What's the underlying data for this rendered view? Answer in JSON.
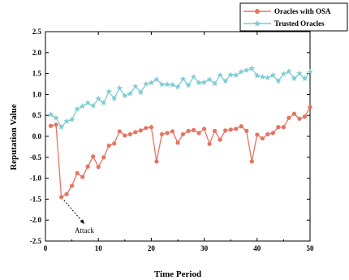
{
  "chart_data": {
    "type": "line",
    "xlabel": "Time Period",
    "ylabel": "Reputation Value",
    "xlim": [
      0,
      50
    ],
    "ylim": [
      -2.5,
      2.5
    ],
    "xticks": [
      0,
      10,
      20,
      30,
      40,
      50
    ],
    "yticks": [
      "-2.5",
      "-2.0",
      "-1.5",
      "-1.0",
      "-0.5",
      "0.0",
      "0.5",
      "1.0",
      "1.5",
      "2.0",
      "2.5"
    ],
    "ytick_values": [
      -2.5,
      -2.0,
      -1.5,
      -1.0,
      -0.5,
      0.0,
      0.5,
      1.0,
      1.5,
      2.0,
      2.5
    ],
    "highlight_ytick": "-1.5",
    "highlight_color": "#6b6bd6",
    "grid": false,
    "legend_position": "top-right",
    "annotation": {
      "text": "Attack",
      "x": 3,
      "y": -1.45
    },
    "x": [
      1,
      2,
      3,
      4,
      5,
      6,
      7,
      8,
      9,
      10,
      11,
      12,
      13,
      14,
      15,
      16,
      17,
      18,
      19,
      20,
      21,
      22,
      23,
      24,
      25,
      26,
      27,
      28,
      29,
      30,
      31,
      32,
      33,
      34,
      35,
      36,
      37,
      38,
      39,
      40,
      41,
      42,
      43,
      44,
      45,
      46,
      47,
      48,
      49,
      50
    ],
    "series": [
      {
        "name": "Oracles with OSA",
        "color": "#e8735f",
        "marker": "circle",
        "values": [
          0.25,
          0.28,
          -1.45,
          -1.38,
          -1.18,
          -0.88,
          -0.97,
          -0.72,
          -0.48,
          -0.73,
          -0.5,
          -0.22,
          -0.17,
          0.12,
          0.02,
          0.05,
          0.1,
          0.14,
          0.2,
          0.22,
          -0.6,
          0.05,
          0.08,
          0.12,
          -0.15,
          0.05,
          0.13,
          0.15,
          0.08,
          0.18,
          -0.18,
          0.13,
          -0.08,
          0.14,
          0.16,
          0.18,
          0.24,
          0.13,
          -0.6,
          0.04,
          -0.05,
          0.05,
          0.08,
          0.22,
          0.22,
          0.44,
          0.54,
          0.42,
          0.47,
          0.7
        ]
      },
      {
        "name": "Trusted Oracles",
        "color": "#7ecbd4",
        "marker": "star",
        "values": [
          0.52,
          0.44,
          0.22,
          0.36,
          0.4,
          0.65,
          0.72,
          0.8,
          0.73,
          0.9,
          0.8,
          1.07,
          0.9,
          1.15,
          0.97,
          1.02,
          1.19,
          1.05,
          1.25,
          1.28,
          1.36,
          1.24,
          1.24,
          1.23,
          1.18,
          1.37,
          1.22,
          1.42,
          1.28,
          1.29,
          1.36,
          1.26,
          1.46,
          1.32,
          1.47,
          1.46,
          1.54,
          1.58,
          1.62,
          1.45,
          1.42,
          1.4,
          1.46,
          1.32,
          1.49,
          1.55,
          1.38,
          1.5,
          1.38,
          1.54
        ]
      }
    ]
  }
}
